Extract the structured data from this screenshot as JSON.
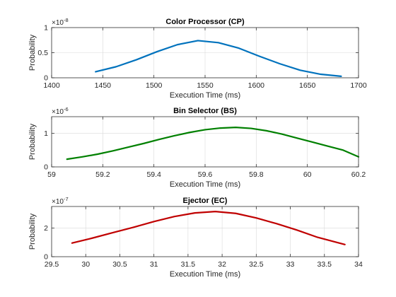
{
  "chart_data": [
    {
      "type": "line",
      "title": "Color Processor (CP)",
      "xlabel": "Execution Time (ms)",
      "ylabel": "Probability",
      "xlim": [
        1400,
        1700
      ],
      "ylim": [
        0,
        1
      ],
      "y_exponent_base": "×10",
      "y_exponent": "-8",
      "xticks": [
        1400,
        1450,
        1500,
        1550,
        1600,
        1650,
        1700
      ],
      "xtick_labels": [
        "1400",
        "1450",
        "1500",
        "1550",
        "1600",
        "1650",
        "1700"
      ],
      "yticks": [
        0,
        0.5,
        1
      ],
      "ytick_labels": [
        "0",
        "0.5",
        "1"
      ],
      "grid": true,
      "color": "#0072BD",
      "series": [
        {
          "x": [
            1443,
            1463,
            1483,
            1503,
            1523,
            1543,
            1563,
            1583,
            1603,
            1623,
            1643,
            1663,
            1683
          ],
          "y": [
            0.12,
            0.22,
            0.36,
            0.52,
            0.66,
            0.74,
            0.7,
            0.59,
            0.43,
            0.28,
            0.15,
            0.07,
            0.03
          ]
        }
      ]
    },
    {
      "type": "line",
      "title": "Bin Selector (BS)",
      "xlabel": "Execution Time (ms)",
      "ylabel": "Probability",
      "xlim": [
        59,
        60.2
      ],
      "ylim": [
        0,
        1.5
      ],
      "y_exponent_base": "×10",
      "y_exponent": "-6",
      "xticks": [
        59,
        59.2,
        59.4,
        59.6,
        59.8,
        60,
        60.2
      ],
      "xtick_labels": [
        "59",
        "59.2",
        "59.4",
        "59.6",
        "59.8",
        "60",
        "60.2"
      ],
      "yticks": [
        0,
        1
      ],
      "ytick_labels": [
        "0",
        "1"
      ],
      "grid": true,
      "color": "#008000",
      "series": [
        {
          "x": [
            59.06,
            59.12,
            59.18,
            59.24,
            59.3,
            59.36,
            59.42,
            59.48,
            59.54,
            59.6,
            59.66,
            59.72,
            59.78,
            59.84,
            59.9,
            59.96,
            60.02,
            60.08,
            60.14,
            60.2
          ],
          "y": [
            0.23,
            0.3,
            0.38,
            0.48,
            0.59,
            0.7,
            0.82,
            0.93,
            1.03,
            1.11,
            1.16,
            1.18,
            1.15,
            1.08,
            0.98,
            0.86,
            0.74,
            0.62,
            0.5,
            0.3
          ]
        }
      ]
    },
    {
      "type": "line",
      "title": "Ejector (EC)",
      "xlabel": "Execution Time (ms)",
      "ylabel": "Probability",
      "xlim": [
        29.5,
        34
      ],
      "ylim": [
        0,
        3.5
      ],
      "y_exponent_base": "×10",
      "y_exponent": "-7",
      "xticks": [
        29.5,
        30,
        30.5,
        31,
        31.5,
        32,
        32.5,
        33,
        33.5,
        34
      ],
      "xtick_labels": [
        "29.5",
        "30",
        "30.5",
        "31",
        "31.5",
        "32",
        "32.5",
        "33",
        "33.5",
        "34"
      ],
      "yticks": [
        0,
        2
      ],
      "ytick_labels": [
        "0",
        "2"
      ],
      "grid": true,
      "color": "#C00000",
      "series": [
        {
          "x": [
            29.8,
            30.1,
            30.4,
            30.7,
            31.0,
            31.3,
            31.6,
            31.9,
            32.2,
            32.5,
            32.8,
            33.1,
            33.4,
            33.8
          ],
          "y": [
            0.95,
            1.3,
            1.68,
            2.05,
            2.45,
            2.8,
            3.05,
            3.15,
            3.02,
            2.7,
            2.3,
            1.85,
            1.35,
            0.85
          ]
        }
      ]
    }
  ]
}
